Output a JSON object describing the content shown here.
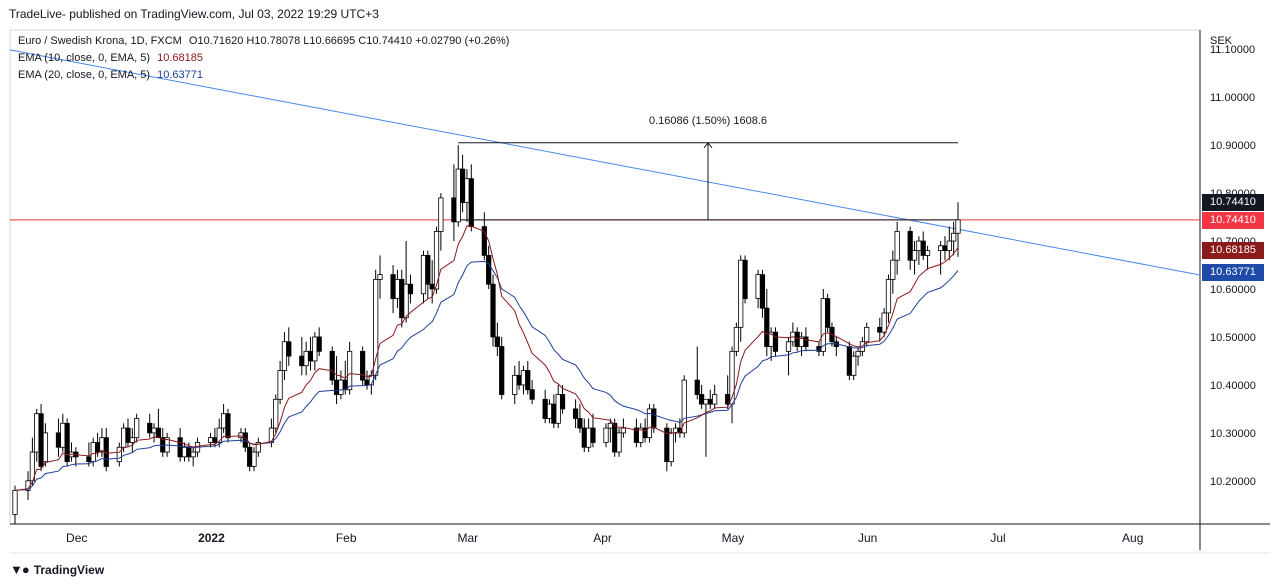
{
  "header": {
    "publisher": "TradeLive- published on TradingView.com, Jul 03, 2022 19:29 UTC+3"
  },
  "legend": {
    "symbol_line": "Euro / Swedish Krona, 1D, FXCM",
    "ohlc": "O10.71620 H10.78078 L10.66695 C10.74410 +0.02790 (+0.26%)",
    "ema10_label": "EMA (10, close, 0, EMA, 5)",
    "ema10_value": "10.68185",
    "ema20_label": "EMA (20, close, 0, EMA, 5)",
    "ema20_value": "10.63771"
  },
  "measure_label": "0.16086 (1.50%) 1608.6",
  "price_tags": {
    "last_close": "10.74410",
    "last_close_red": "10.74410",
    "ema10": "10.68185",
    "ema20": "10.63771"
  },
  "footer": {
    "brand": "TradingView"
  },
  "colors": {
    "up_candle": "#ffffff",
    "down_candle": "#000000",
    "ema10": "#8b1a1a",
    "ema20": "#1e3f9c",
    "trendline": "#4a86e8",
    "horizontal_level": "#e53935",
    "ema10_tag": "#8b1a1a",
    "ema20_tag": "#1e4aa8",
    "close_tag_red": "#f23645"
  },
  "chart_data": {
    "type": "candlestick",
    "currency_label": "SEK",
    "y_ticks": [
      "10.20000",
      "10.30000",
      "10.40000",
      "10.50000",
      "10.60000",
      "10.70000",
      "10.80000",
      "10.90000",
      "11.00000",
      "11.10000"
    ],
    "x_ticks": [
      "Dec",
      "2022",
      "Feb",
      "Mar",
      "Apr",
      "May",
      "Jun",
      "Jul",
      "Aug"
    ],
    "ylim": [
      10.11,
      11.14
    ],
    "horizontal_level": 10.7441,
    "measure": {
      "from": 10.7441,
      "to": 10.9049
    },
    "trendline": {
      "from": [
        "2021-11-24",
        11.1
      ],
      "to": [
        "2022-08-31",
        10.62
      ]
    },
    "candles": [
      [
        "2021-11-26",
        10.13,
        10.19,
        10.11,
        10.18
      ],
      [
        "2021-11-29",
        10.18,
        10.22,
        10.16,
        10.2
      ],
      [
        "2021-11-30",
        10.2,
        10.29,
        10.19,
        10.26
      ],
      [
        "2021-12-01",
        10.26,
        10.35,
        10.24,
        10.34
      ],
      [
        "2021-12-02",
        10.34,
        10.36,
        10.22,
        10.23
      ],
      [
        "2021-12-03",
        10.24,
        10.32,
        10.23,
        10.3
      ],
      [
        "2021-12-06",
        10.3,
        10.33,
        10.25,
        10.27
      ],
      [
        "2021-12-07",
        10.27,
        10.34,
        10.26,
        10.32
      ],
      [
        "2021-12-08",
        10.32,
        10.33,
        10.23,
        10.24
      ],
      [
        "2021-12-09",
        10.25,
        10.28,
        10.24,
        10.26
      ],
      [
        "2021-12-10",
        10.26,
        10.27,
        10.23,
        10.25
      ],
      [
        "2021-12-13",
        10.25,
        10.28,
        10.23,
        10.24
      ],
      [
        "2021-12-14",
        10.24,
        10.29,
        10.23,
        10.28
      ],
      [
        "2021-12-15",
        10.28,
        10.3,
        10.25,
        10.26
      ],
      [
        "2021-12-16",
        10.26,
        10.31,
        10.25,
        10.29
      ],
      [
        "2021-12-17",
        10.29,
        10.31,
        10.22,
        10.23
      ],
      [
        "2021-12-20",
        10.24,
        10.28,
        10.23,
        10.27
      ],
      [
        "2021-12-21",
        10.27,
        10.32,
        10.26,
        10.31
      ],
      [
        "2021-12-22",
        10.31,
        10.33,
        10.27,
        10.28
      ],
      [
        "2021-12-23",
        10.28,
        10.31,
        10.26,
        10.29
      ],
      [
        "2021-12-24",
        10.29,
        10.34,
        10.28,
        10.33
      ],
      [
        "2021-12-27",
        10.32,
        10.34,
        10.29,
        10.3
      ],
      [
        "2021-12-28",
        10.3,
        10.32,
        10.28,
        10.31
      ],
      [
        "2021-12-29",
        10.31,
        10.35,
        10.29,
        10.29
      ],
      [
        "2021-12-30",
        10.29,
        10.31,
        10.25,
        10.26
      ],
      [
        "2021-12-31",
        10.26,
        10.3,
        10.25,
        10.29
      ],
      [
        "2022-01-03",
        10.29,
        10.31,
        10.24,
        10.25
      ],
      [
        "2022-01-04",
        10.25,
        10.28,
        10.24,
        10.27
      ],
      [
        "2022-01-05",
        10.27,
        10.28,
        10.24,
        10.25
      ],
      [
        "2022-01-06",
        10.25,
        10.27,
        10.23,
        10.26
      ],
      [
        "2022-01-07",
        10.26,
        10.29,
        10.25,
        10.28
      ],
      [
        "2022-01-10",
        10.28,
        10.3,
        10.27,
        10.29
      ],
      [
        "2022-01-11",
        10.29,
        10.31,
        10.27,
        10.28
      ],
      [
        "2022-01-12",
        10.28,
        10.33,
        10.27,
        10.31
      ],
      [
        "2022-01-13",
        10.31,
        10.36,
        10.3,
        10.34
      ],
      [
        "2022-01-14",
        10.34,
        10.35,
        10.28,
        10.29
      ],
      [
        "2022-01-17",
        10.29,
        10.31,
        10.28,
        10.3
      ],
      [
        "2022-01-18",
        10.3,
        10.31,
        10.26,
        10.27
      ],
      [
        "2022-01-19",
        10.27,
        10.28,
        10.22,
        10.23
      ],
      [
        "2022-01-20",
        10.23,
        10.27,
        10.22,
        10.26
      ],
      [
        "2022-01-21",
        10.26,
        10.29,
        10.25,
        10.28
      ],
      [
        "2022-01-24",
        10.28,
        10.33,
        10.27,
        10.31
      ],
      [
        "2022-01-25",
        10.31,
        10.38,
        10.3,
        10.37
      ],
      [
        "2022-01-26",
        10.37,
        10.45,
        10.36,
        10.43
      ],
      [
        "2022-01-27",
        10.43,
        10.51,
        10.41,
        10.49
      ],
      [
        "2022-01-28",
        10.49,
        10.52,
        10.44,
        10.46
      ],
      [
        "2022-01-31",
        10.46,
        10.5,
        10.42,
        10.44
      ],
      [
        "2022-02-01",
        10.44,
        10.49,
        10.42,
        10.47
      ],
      [
        "2022-02-02",
        10.47,
        10.5,
        10.43,
        10.45
      ],
      [
        "2022-02-03",
        10.45,
        10.51,
        10.43,
        10.5
      ],
      [
        "2022-02-04",
        10.5,
        10.52,
        10.46,
        10.47
      ],
      [
        "2022-02-07",
        10.47,
        10.48,
        10.4,
        10.41
      ],
      [
        "2022-02-08",
        10.41,
        10.46,
        10.36,
        10.38
      ],
      [
        "2022-02-09",
        10.38,
        10.43,
        10.37,
        10.41
      ],
      [
        "2022-02-10",
        10.41,
        10.45,
        10.38,
        10.39
      ],
      [
        "2022-02-11",
        10.39,
        10.49,
        10.38,
        10.47
      ],
      [
        "2022-02-14",
        10.47,
        10.48,
        10.4,
        10.41
      ],
      [
        "2022-02-15",
        10.41,
        10.43,
        10.39,
        10.4
      ],
      [
        "2022-02-16",
        10.4,
        10.43,
        10.38,
        10.42
      ],
      [
        "2022-02-17",
        10.42,
        10.64,
        10.41,
        10.62
      ],
      [
        "2022-02-18",
        10.62,
        10.67,
        10.58,
        10.63
      ],
      [
        "2022-02-21",
        10.63,
        10.65,
        10.55,
        10.58
      ],
      [
        "2022-02-22",
        10.58,
        10.64,
        10.56,
        10.62
      ],
      [
        "2022-02-23",
        10.62,
        10.64,
        10.52,
        10.54
      ],
      [
        "2022-02-24",
        10.54,
        10.7,
        10.53,
        10.61
      ],
      [
        "2022-02-25",
        10.61,
        10.63,
        10.57,
        10.59
      ],
      [
        "2022-02-28",
        10.59,
        10.68,
        10.57,
        10.67
      ],
      [
        "2022-03-01",
        10.67,
        10.68,
        10.58,
        10.61
      ],
      [
        "2022-03-02",
        10.61,
        10.66,
        10.57,
        10.6
      ],
      [
        "2022-03-03",
        10.6,
        10.73,
        10.59,
        10.72
      ],
      [
        "2022-03-04",
        10.72,
        10.8,
        10.68,
        10.79
      ],
      [
        "2022-03-07",
        10.79,
        10.86,
        10.7,
        10.74
      ],
      [
        "2022-03-08",
        10.74,
        10.9,
        10.73,
        10.85
      ],
      [
        "2022-03-09",
        10.85,
        10.88,
        10.76,
        10.78
      ],
      [
        "2022-03-10",
        10.78,
        10.85,
        10.74,
        10.83
      ],
      [
        "2022-03-11",
        10.83,
        10.86,
        10.72,
        10.73
      ],
      [
        "2022-03-14",
        10.73,
        10.76,
        10.66,
        10.67
      ],
      [
        "2022-03-15",
        10.67,
        10.69,
        10.6,
        10.61
      ],
      [
        "2022-03-16",
        10.61,
        10.63,
        10.48,
        10.5
      ],
      [
        "2022-03-17",
        10.5,
        10.53,
        10.46,
        10.48
      ],
      [
        "2022-03-18",
        10.48,
        10.5,
        10.37,
        10.38
      ],
      [
        "2022-03-21",
        10.38,
        10.44,
        10.36,
        10.42
      ],
      [
        "2022-03-22",
        10.42,
        10.45,
        10.39,
        10.4
      ],
      [
        "2022-03-23",
        10.4,
        10.44,
        10.38,
        10.43
      ],
      [
        "2022-03-24",
        10.43,
        10.45,
        10.38,
        10.39
      ],
      [
        "2022-03-25",
        10.39,
        10.41,
        10.36,
        10.37
      ],
      [
        "2022-03-28",
        10.37,
        10.39,
        10.32,
        10.33
      ],
      [
        "2022-03-29",
        10.33,
        10.37,
        10.32,
        10.36
      ],
      [
        "2022-03-30",
        10.36,
        10.38,
        10.31,
        10.32
      ],
      [
        "2022-03-31",
        10.32,
        10.4,
        10.31,
        10.38
      ],
      [
        "2022-04-01",
        10.38,
        10.4,
        10.34,
        10.35
      ],
      [
        "2022-04-04",
        10.35,
        10.37,
        10.31,
        10.33
      ],
      [
        "2022-04-05",
        10.33,
        10.36,
        10.3,
        10.31
      ],
      [
        "2022-04-06",
        10.31,
        10.33,
        10.26,
        10.27
      ],
      [
        "2022-04-07",
        10.27,
        10.33,
        10.26,
        10.31
      ],
      [
        "2022-04-08",
        10.31,
        10.34,
        10.27,
        10.28
      ],
      [
        "2022-04-11",
        10.28,
        10.32,
        10.27,
        10.31
      ],
      [
        "2022-04-12",
        10.31,
        10.33,
        10.28,
        10.32
      ],
      [
        "2022-04-13",
        10.32,
        10.33,
        10.25,
        10.26
      ],
      [
        "2022-04-14",
        10.26,
        10.31,
        10.25,
        10.3
      ],
      [
        "2022-04-15",
        10.3,
        10.33,
        10.29,
        10.31
      ],
      [
        "2022-04-18",
        10.31,
        10.33,
        10.27,
        10.28
      ],
      [
        "2022-04-19",
        10.28,
        10.32,
        10.27,
        10.31
      ],
      [
        "2022-04-20",
        10.31,
        10.33,
        10.28,
        10.29
      ],
      [
        "2022-04-21",
        10.29,
        10.36,
        10.28,
        10.35
      ],
      [
        "2022-04-22",
        10.35,
        10.36,
        10.3,
        10.31
      ],
      [
        "2022-04-25",
        10.31,
        10.32,
        10.22,
        10.24
      ],
      [
        "2022-04-26",
        10.24,
        10.31,
        10.23,
        10.3
      ],
      [
        "2022-04-27",
        10.3,
        10.32,
        10.28,
        10.31
      ],
      [
        "2022-04-28",
        10.31,
        10.33,
        10.29,
        10.3
      ],
      [
        "2022-04-29",
        10.3,
        10.42,
        10.29,
        10.41
      ],
      [
        "2022-05-02",
        10.41,
        10.48,
        10.37,
        10.38
      ],
      [
        "2022-05-03",
        10.38,
        10.4,
        10.35,
        10.36
      ],
      [
        "2022-05-04",
        10.36,
        10.37,
        10.25,
        10.37
      ],
      [
        "2022-05-05",
        10.37,
        10.39,
        10.35,
        10.36
      ],
      [
        "2022-05-06",
        10.36,
        10.4,
        10.35,
        10.38
      ],
      [
        "2022-05-09",
        10.38,
        10.42,
        10.35,
        10.36
      ],
      [
        "2022-05-10",
        10.36,
        10.48,
        10.32,
        10.47
      ],
      [
        "2022-05-11",
        10.47,
        10.53,
        10.46,
        10.52
      ],
      [
        "2022-05-12",
        10.52,
        10.67,
        10.49,
        10.66
      ],
      [
        "2022-05-13",
        10.66,
        10.67,
        10.57,
        10.58
      ],
      [
        "2022-05-16",
        10.58,
        10.64,
        10.56,
        10.63
      ],
      [
        "2022-05-17",
        10.63,
        10.64,
        10.54,
        10.56
      ],
      [
        "2022-05-18",
        10.56,
        10.6,
        10.46,
        10.48
      ],
      [
        "2022-05-19",
        10.48,
        10.52,
        10.45,
        10.51
      ],
      [
        "2022-05-20",
        10.51,
        10.52,
        10.46,
        10.47
      ],
      [
        "2022-05-23",
        10.47,
        10.5,
        10.42,
        10.49
      ],
      [
        "2022-05-24",
        10.49,
        10.53,
        10.48,
        10.51
      ],
      [
        "2022-05-25",
        10.51,
        10.52,
        10.47,
        10.48
      ],
      [
        "2022-05-26",
        10.48,
        10.51,
        10.46,
        10.5
      ],
      [
        "2022-05-27",
        10.5,
        10.52,
        10.47,
        10.48
      ],
      [
        "2022-05-30",
        10.48,
        10.49,
        10.46,
        10.47
      ],
      [
        "2022-05-31",
        10.47,
        10.6,
        10.46,
        10.58
      ],
      [
        "2022-06-01",
        10.58,
        10.59,
        10.51,
        10.52
      ],
      [
        "2022-06-02",
        10.52,
        10.53,
        10.48,
        10.49
      ],
      [
        "2022-06-03",
        10.49,
        10.5,
        10.46,
        10.48
      ],
      [
        "2022-06-06",
        10.48,
        10.49,
        10.41,
        10.42
      ],
      [
        "2022-06-07",
        10.42,
        10.47,
        10.41,
        10.46
      ],
      [
        "2022-06-08",
        10.46,
        10.48,
        10.44,
        10.47
      ],
      [
        "2022-06-09",
        10.47,
        10.5,
        10.46,
        10.49
      ],
      [
        "2022-06-10",
        10.49,
        10.53,
        10.48,
        10.52
      ],
      [
        "2022-06-13",
        10.52,
        10.54,
        10.49,
        10.51
      ],
      [
        "2022-06-14",
        10.51,
        10.56,
        10.5,
        10.55
      ],
      [
        "2022-06-15",
        10.55,
        10.63,
        10.53,
        10.62
      ],
      [
        "2022-06-16",
        10.62,
        10.68,
        10.59,
        10.66
      ],
      [
        "2022-06-17",
        10.66,
        10.74,
        10.63,
        10.72
      ],
      [
        "2022-06-20",
        10.72,
        10.73,
        10.64,
        10.66
      ],
      [
        "2022-06-21",
        10.66,
        10.7,
        10.63,
        10.68
      ],
      [
        "2022-06-22",
        10.68,
        10.71,
        10.65,
        10.7
      ],
      [
        "2022-06-23",
        10.7,
        10.72,
        10.66,
        10.67
      ],
      [
        "2022-06-24",
        10.67,
        10.69,
        10.64,
        10.68
      ],
      [
        "2022-06-27",
        10.68,
        10.7,
        10.63,
        10.69
      ],
      [
        "2022-06-28",
        10.69,
        10.71,
        10.66,
        10.68
      ],
      [
        "2022-06-29",
        10.68,
        10.73,
        10.66,
        10.7
      ],
      [
        "2022-06-30",
        10.7,
        10.74,
        10.67,
        10.7162
      ],
      [
        "2022-07-01",
        10.7162,
        10.78078,
        10.66695,
        10.7441
      ]
    ]
  }
}
